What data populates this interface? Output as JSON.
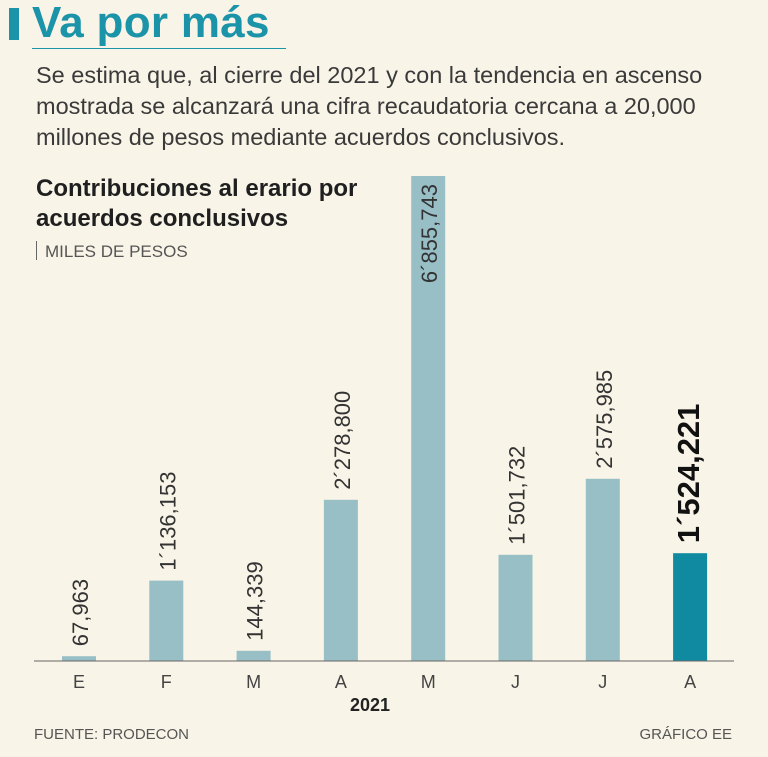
{
  "header": {
    "title": "Va por más",
    "subtitle": "Se estima que, al cierre del 2021 y con la tendencia en ascenso mostrada se alcanzará una cifra recaudatoria cercana a 20,000 millones de pesos mediante acuerdos conclusivos."
  },
  "colors": {
    "accent": "#1b93a8",
    "bar": "#98bfc6",
    "highlight_bar": "#0f8aa0",
    "background": "#f8f4e7"
  },
  "chart_data": {
    "type": "bar",
    "title": "Contribuciones al erario por acuerdos conclusivos",
    "units": "MILES DE PESOS",
    "xlabel": "2021",
    "ylabel": "",
    "categories": [
      "E",
      "F",
      "M",
      "A",
      "M",
      "J",
      "J",
      "A"
    ],
    "values": [
      67963,
      1136153,
      144339,
      2278800,
      6855743,
      1501732,
      2575985,
      1524221
    ],
    "value_labels": [
      "67,963",
      "1´136,153",
      "144,339",
      "2´278,800",
      "6´855,743",
      "1´501,732",
      "2´575,985",
      "1´524,221"
    ],
    "highlight_index": 7,
    "ylim": [
      0,
      6855743
    ]
  },
  "footer": {
    "source": "FUENTE: PRODECON",
    "credit": "GRÁFICO EE"
  }
}
